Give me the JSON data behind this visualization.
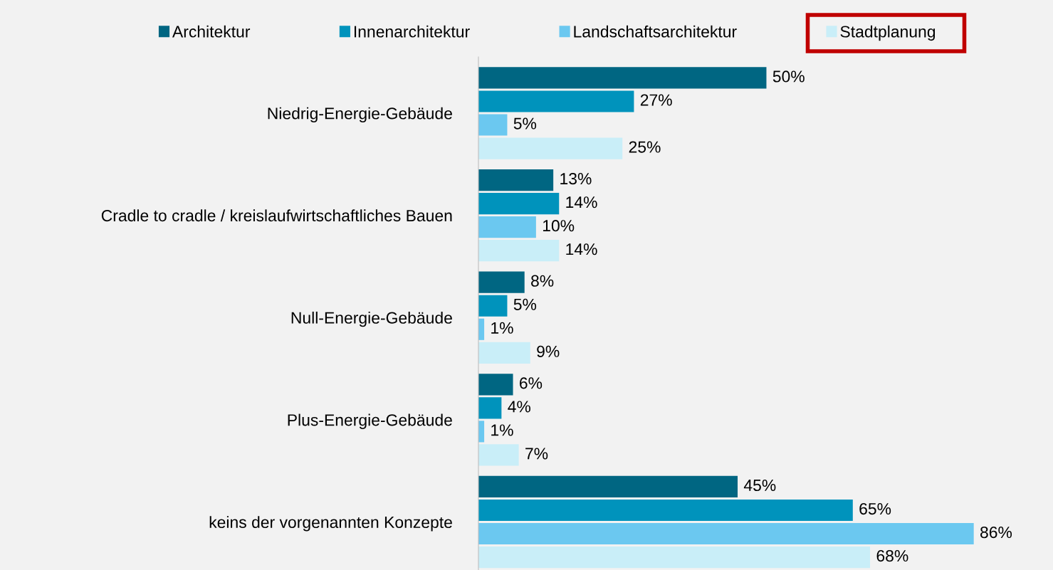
{
  "chart_data": {
    "type": "bar",
    "orientation": "horizontal",
    "legend": "top",
    "grid": false,
    "data_labels": true,
    "categories": [
      "Niedrig-Energie-Gebäude",
      "Cradle to cradle / kreislaufwirtschaftliches Bauen",
      "Null-Energie-Gebäude",
      "Plus-Energie-Gebäude",
      "keins der vorgenannten Konzepte"
    ],
    "series": [
      {
        "name": "Architektur",
        "color": "#006682",
        "values": [
          50,
          13,
          8,
          6,
          45
        ],
        "value_labels": [
          "50%",
          "13%",
          "8%",
          "6%",
          "45%"
        ]
      },
      {
        "name": "Innenarchitektur",
        "color": "#0093bc",
        "values": [
          27,
          14,
          5,
          4,
          65
        ],
        "value_labels": [
          "27%",
          "14%",
          "5%",
          "4%",
          "65%"
        ]
      },
      {
        "name": "Landschaftsarchitektur",
        "color": "#6bc8f0",
        "values": [
          5,
          10,
          1,
          1,
          86
        ],
        "value_labels": [
          "5%",
          "10%",
          "1%",
          "1%",
          "86%"
        ]
      },
      {
        "name": "Stadtplanung",
        "color": "#c9eef8",
        "values": [
          25,
          14,
          9,
          7,
          68
        ],
        "value_labels": [
          "25%",
          "14%",
          "9%",
          "7%",
          "68%"
        ]
      }
    ]
  }
}
